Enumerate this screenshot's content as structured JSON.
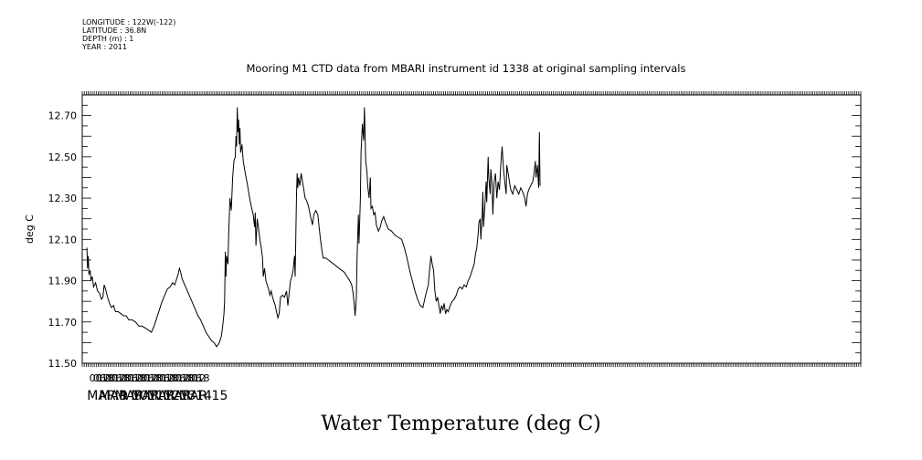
{
  "metadata": {
    "longitude": "LONGITUDE : 122W(-122)",
    "latitude": "LATITUDE : 36.8N",
    "depth": "DEPTH (m) : 1",
    "year": "YEAR : 2011"
  },
  "chart_data": {
    "type": "line",
    "title": "Mooring M1 CTD data from MBARI instrument id 1338 at original sampling intervals",
    "xlabel": "Water Temperature (deg C)",
    "ylabel": "deg C",
    "ylim": [
      11.5,
      12.8
    ],
    "y_ticks": [
      "11.50",
      "11.70",
      "11.90",
      "12.10",
      "12.30",
      "12.50",
      "12.70"
    ],
    "x_unit": "hours since MAR 9 00:00",
    "xlim": [
      -20,
      1150
    ],
    "x_hour_ticks": [
      "00",
      "06",
      "12",
      "18"
    ],
    "x_day_labels": [
      "MAR  9",
      "MAR 10",
      "MAR 11",
      "MAR 12",
      "MAR 13",
      "MAR 14",
      "MAR 15"
    ],
    "grid": false,
    "series": [
      {
        "points": [
          [
            -13,
            12.06
          ],
          [
            -12,
            11.96
          ],
          [
            -11,
            12.02
          ],
          [
            -10,
            11.93
          ],
          [
            -8,
            11.95
          ],
          [
            -7,
            11.9
          ],
          [
            -5,
            11.92
          ],
          [
            -3,
            11.87
          ],
          [
            0,
            11.89
          ],
          [
            3,
            11.85
          ],
          [
            6,
            11.84
          ],
          [
            9,
            11.81
          ],
          [
            11,
            11.82
          ],
          [
            13,
            11.88
          ],
          [
            15,
            11.86
          ],
          [
            18,
            11.82
          ],
          [
            21,
            11.79
          ],
          [
            24,
            11.77
          ],
          [
            27,
            11.78
          ],
          [
            30,
            11.75
          ],
          [
            34,
            11.75
          ],
          [
            38,
            11.74
          ],
          [
            42,
            11.73
          ],
          [
            46,
            11.73
          ],
          [
            50,
            11.71
          ],
          [
            55,
            11.71
          ],
          [
            60,
            11.7
          ],
          [
            65,
            11.68
          ],
          [
            70,
            11.68
          ],
          [
            75,
            11.67
          ],
          [
            80,
            11.66
          ],
          [
            84,
            11.65
          ],
          [
            88,
            11.68
          ],
          [
            92,
            11.72
          ],
          [
            96,
            11.76
          ],
          [
            100,
            11.8
          ],
          [
            104,
            11.83
          ],
          [
            108,
            11.86
          ],
          [
            112,
            11.87
          ],
          [
            116,
            11.89
          ],
          [
            119,
            11.88
          ],
          [
            121,
            11.9
          ],
          [
            124,
            11.93
          ],
          [
            126,
            11.96
          ],
          [
            128,
            11.94
          ],
          [
            130,
            11.91
          ],
          [
            134,
            11.88
          ],
          [
            138,
            11.85
          ],
          [
            142,
            11.82
          ],
          [
            146,
            11.79
          ],
          [
            150,
            11.76
          ],
          [
            154,
            11.73
          ],
          [
            158,
            11.71
          ],
          [
            162,
            11.68
          ],
          [
            166,
            11.65
          ],
          [
            170,
            11.63
          ],
          [
            174,
            11.61
          ],
          [
            178,
            11.6
          ],
          [
            182,
            11.58
          ],
          [
            186,
            11.6
          ],
          [
            189,
            11.63
          ],
          [
            191,
            11.68
          ],
          [
            193,
            11.74
          ],
          [
            194,
            11.8
          ],
          [
            195,
            12.04
          ],
          [
            196,
            11.92
          ],
          [
            197,
            12.02
          ],
          [
            199,
            11.98
          ],
          [
            200,
            12.12
          ],
          [
            202,
            12.3
          ],
          [
            204,
            12.24
          ],
          [
            206,
            12.4
          ],
          [
            208,
            12.48
          ],
          [
            210,
            12.5
          ],
          [
            211,
            12.6
          ],
          [
            212,
            12.55
          ],
          [
            213,
            12.74
          ],
          [
            214,
            12.62
          ],
          [
            215,
            12.68
          ],
          [
            216,
            12.56
          ],
          [
            217,
            12.64
          ],
          [
            218,
            12.52
          ],
          [
            220,
            12.56
          ],
          [
            222,
            12.48
          ],
          [
            225,
            12.42
          ],
          [
            228,
            12.37
          ],
          [
            231,
            12.31
          ],
          [
            234,
            12.26
          ],
          [
            237,
            12.22
          ],
          [
            239,
            12.16
          ],
          [
            240,
            12.23
          ],
          [
            241,
            12.07
          ],
          [
            243,
            12.2
          ],
          [
            245,
            12.15
          ],
          [
            247,
            12.1
          ],
          [
            249,
            12.06
          ],
          [
            251,
            12.01
          ],
          [
            252,
            11.92
          ],
          [
            254,
            11.96
          ],
          [
            256,
            11.9
          ],
          [
            258,
            11.88
          ],
          [
            260,
            11.86
          ],
          [
            262,
            11.83
          ],
          [
            264,
            11.85
          ],
          [
            266,
            11.82
          ],
          [
            268,
            11.8
          ],
          [
            270,
            11.78
          ],
          [
            272,
            11.75
          ],
          [
            274,
            11.72
          ],
          [
            276,
            11.74
          ],
          [
            278,
            11.82
          ],
          [
            281,
            11.83
          ],
          [
            284,
            11.82
          ],
          [
            287,
            11.85
          ],
          [
            289,
            11.78
          ],
          [
            291,
            11.84
          ],
          [
            293,
            11.9
          ],
          [
            295,
            11.92
          ],
          [
            297,
            11.95
          ],
          [
            299,
            12.02
          ],
          [
            300,
            11.92
          ],
          [
            302,
            12.32
          ],
          [
            303,
            12.42
          ],
          [
            304,
            12.35
          ],
          [
            305,
            12.4
          ],
          [
            307,
            12.36
          ],
          [
            309,
            12.42
          ],
          [
            311,
            12.38
          ],
          [
            313,
            12.34
          ],
          [
            315,
            12.3
          ],
          [
            317,
            12.29
          ],
          [
            320,
            12.26
          ],
          [
            323,
            12.21
          ],
          [
            326,
            12.17
          ],
          [
            328,
            12.22
          ],
          [
            331,
            12.24
          ],
          [
            334,
            12.22
          ],
          [
            336,
            12.16
          ],
          [
            338,
            12.1
          ],
          [
            340,
            12.05
          ],
          [
            342,
            12.01
          ],
          [
            346,
            12.01
          ],
          [
            350,
            12.0
          ],
          [
            354,
            11.99
          ],
          [
            358,
            11.98
          ],
          [
            362,
            11.97
          ],
          [
            366,
            11.96
          ],
          [
            370,
            11.95
          ],
          [
            374,
            11.94
          ],
          [
            378,
            11.92
          ],
          [
            382,
            11.9
          ],
          [
            385,
            11.88
          ],
          [
            387,
            11.84
          ],
          [
            389,
            11.78
          ],
          [
            390,
            11.73
          ],
          [
            392,
            11.82
          ],
          [
            393,
            12.0
          ],
          [
            395,
            12.22
          ],
          [
            396,
            12.08
          ],
          [
            398,
            12.3
          ],
          [
            399,
            12.52
          ],
          [
            401,
            12.66
          ],
          [
            403,
            12.58
          ],
          [
            404,
            12.74
          ],
          [
            406,
            12.48
          ],
          [
            408,
            12.42
          ],
          [
            409,
            12.36
          ],
          [
            411,
            12.3
          ],
          [
            413,
            12.4
          ],
          [
            414,
            12.25
          ],
          [
            416,
            12.26
          ],
          [
            418,
            12.22
          ],
          [
            420,
            12.23
          ],
          [
            422,
            12.17
          ],
          [
            425,
            12.14
          ],
          [
            428,
            12.16
          ],
          [
            430,
            12.19
          ],
          [
            433,
            12.21
          ],
          [
            436,
            12.18
          ],
          [
            440,
            12.15
          ],
          [
            445,
            12.14
          ],
          [
            450,
            12.12
          ],
          [
            455,
            12.11
          ],
          [
            460,
            12.1
          ],
          [
            464,
            12.06
          ],
          [
            468,
            12.01
          ],
          [
            472,
            11.95
          ],
          [
            476,
            11.9
          ],
          [
            480,
            11.85
          ],
          [
            484,
            11.81
          ],
          [
            488,
            11.78
          ],
          [
            492,
            11.77
          ],
          [
            496,
            11.83
          ],
          [
            500,
            11.88
          ],
          [
            502,
            11.95
          ],
          [
            504,
            12.02
          ],
          [
            506,
            11.98
          ],
          [
            508,
            11.95
          ],
          [
            510,
            11.85
          ],
          [
            512,
            11.8
          ],
          [
            514,
            11.82
          ],
          [
            516,
            11.78
          ],
          [
            518,
            11.74
          ],
          [
            520,
            11.78
          ],
          [
            522,
            11.76
          ],
          [
            524,
            11.79
          ],
          [
            526,
            11.74
          ],
          [
            528,
            11.76
          ],
          [
            530,
            11.75
          ],
          [
            533,
            11.78
          ],
          [
            536,
            11.8
          ],
          [
            539,
            11.81
          ],
          [
            542,
            11.83
          ],
          [
            545,
            11.86
          ],
          [
            548,
            11.87
          ],
          [
            551,
            11.86
          ],
          [
            554,
            11.88
          ],
          [
            557,
            11.87
          ],
          [
            560,
            11.9
          ],
          [
            563,
            11.92
          ],
          [
            566,
            11.95
          ],
          [
            569,
            11.98
          ],
          [
            571,
            12.03
          ],
          [
            573,
            12.06
          ],
          [
            575,
            12.13
          ],
          [
            576,
            12.18
          ],
          [
            578,
            12.2
          ],
          [
            579,
            12.1
          ],
          [
            581,
            12.22
          ],
          [
            582,
            12.33
          ],
          [
            583,
            12.16
          ],
          [
            585,
            12.26
          ],
          [
            587,
            12.38
          ],
          [
            588,
            12.28
          ],
          [
            590,
            12.5
          ],
          [
            591,
            12.4
          ],
          [
            593,
            12.32
          ],
          [
            594,
            12.44
          ],
          [
            596,
            12.36
          ],
          [
            597,
            12.22
          ],
          [
            599,
            12.38
          ],
          [
            601,
            12.42
          ],
          [
            603,
            12.3
          ],
          [
            605,
            12.38
          ],
          [
            607,
            12.34
          ],
          [
            609,
            12.46
          ],
          [
            611,
            12.55
          ],
          [
            613,
            12.44
          ],
          [
            615,
            12.38
          ],
          [
            617,
            12.32
          ],
          [
            618,
            12.46
          ],
          [
            620,
            12.42
          ],
          [
            622,
            12.38
          ],
          [
            624,
            12.34
          ],
          [
            627,
            12.32
          ],
          [
            630,
            12.36
          ],
          [
            633,
            12.34
          ],
          [
            636,
            12.32
          ],
          [
            639,
            12.35
          ],
          [
            642,
            12.33
          ],
          [
            645,
            12.3
          ],
          [
            647,
            12.26
          ],
          [
            649,
            12.32
          ],
          [
            651,
            12.34
          ],
          [
            654,
            12.36
          ],
          [
            657,
            12.38
          ],
          [
            659,
            12.42
          ],
          [
            661,
            12.48
          ],
          [
            662,
            12.4
          ],
          [
            664,
            12.46
          ],
          [
            666,
            12.35
          ],
          [
            667,
            12.62
          ],
          [
            668,
            12.36
          ]
        ]
      }
    ]
  }
}
